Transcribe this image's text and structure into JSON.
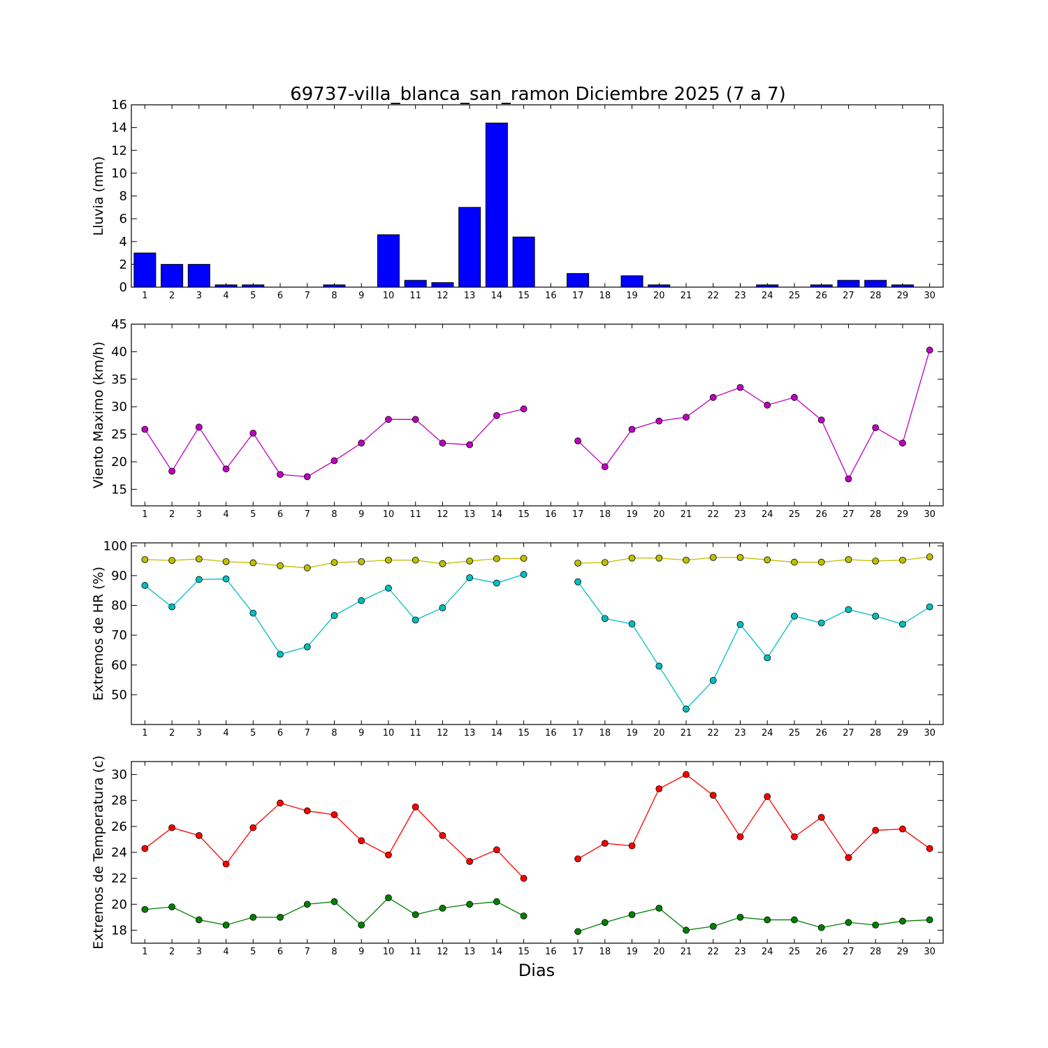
{
  "title": "69737-villa_blanca_san_ramon Diciembre 2025  (7 a 7)",
  "xlabel": "Dias",
  "days": [
    1,
    2,
    3,
    4,
    5,
    6,
    7,
    8,
    9,
    10,
    11,
    12,
    13,
    14,
    15,
    16,
    17,
    18,
    19,
    20,
    21,
    22,
    23,
    24,
    25,
    26,
    27,
    28,
    29,
    30
  ],
  "chart_data": [
    {
      "type": "bar",
      "ylabel": "Lluvia (mm)",
      "ylim": [
        0,
        16
      ],
      "yticks": [
        0,
        2,
        4,
        6,
        8,
        10,
        12,
        14,
        16
      ],
      "color": "#0000ff",
      "series": [
        {
          "values": [
            3.0,
            2.0,
            2.0,
            0.2,
            0.2,
            0,
            0,
            0.2,
            0,
            4.6,
            0.6,
            0.4,
            7.0,
            14.4,
            4.4,
            0,
            1.2,
            0,
            1.0,
            0.2,
            0,
            0,
            0,
            0.2,
            0,
            0.2,
            0.6,
            0.6,
            0.2,
            0
          ]
        }
      ]
    },
    {
      "type": "line",
      "ylabel": "Viento Maximo (km/h)",
      "ylim": [
        12,
        45
      ],
      "yticks": [
        15,
        20,
        25,
        30,
        35,
        40,
        45
      ],
      "series": [
        {
          "color": "#bf00bf",
          "values": [
            25.9,
            18.3,
            26.3,
            18.7,
            25.2,
            17.7,
            17.3,
            20.2,
            23.4,
            27.7,
            27.7,
            23.4,
            23.1,
            28.4,
            29.6,
            null,
            23.8,
            19.1,
            25.9,
            27.4,
            28.1,
            31.7,
            33.5,
            30.3,
            31.7,
            27.6,
            16.9,
            26.2,
            23.4,
            40.3
          ]
        }
      ]
    },
    {
      "type": "line",
      "ylabel": "Extremos de HR (%)",
      "ylim": [
        40,
        101
      ],
      "yticks": [
        50,
        60,
        70,
        80,
        90,
        100
      ],
      "series": [
        {
          "color": "#bfbf00",
          "values": [
            95.4,
            95.1,
            95.6,
            94.7,
            94.3,
            93.3,
            92.6,
            94.4,
            94.7,
            95.2,
            95.2,
            94.0,
            94.9,
            95.7,
            95.8,
            null,
            94.2,
            94.4,
            95.9,
            95.9,
            95.2,
            96.1,
            96.1,
            95.3,
            94.5,
            94.5,
            95.4,
            94.9,
            95.2,
            96.3
          ]
        },
        {
          "color": "#00bfbf",
          "values": [
            86.7,
            79.5,
            88.7,
            88.9,
            77.4,
            63.6,
            66.1,
            76.6,
            81.6,
            85.8,
            75.1,
            79.2,
            89.3,
            87.5,
            90.4,
            null,
            87.9,
            75.6,
            73.8,
            59.6,
            45.2,
            54.8,
            73.6,
            62.4,
            76.4,
            74.1,
            78.6,
            76.4,
            73.7,
            79.5
          ]
        }
      ]
    },
    {
      "type": "line",
      "ylabel": "Extremos de Temperatura (c)",
      "ylim": [
        17,
        31
      ],
      "yticks": [
        18,
        20,
        22,
        24,
        26,
        28,
        30
      ],
      "series": [
        {
          "color": "#ff0000",
          "values": [
            24.3,
            25.9,
            25.3,
            23.1,
            25.9,
            27.8,
            27.2,
            26.9,
            24.9,
            23.8,
            27.5,
            25.3,
            23.3,
            24.2,
            22.0,
            null,
            23.5,
            24.7,
            24.5,
            28.9,
            30.0,
            28.4,
            25.2,
            28.3,
            25.2,
            26.7,
            23.6,
            25.7,
            25.8,
            24.3
          ]
        },
        {
          "color": "#008000",
          "values": [
            19.6,
            19.8,
            18.8,
            18.4,
            19.0,
            19.0,
            20.0,
            20.2,
            18.4,
            20.5,
            19.2,
            19.7,
            20.0,
            20.2,
            19.1,
            null,
            17.9,
            18.6,
            19.2,
            19.7,
            18.0,
            18.3,
            19.0,
            18.8,
            18.8,
            18.2,
            18.6,
            18.4,
            18.7,
            18.8
          ]
        }
      ]
    }
  ]
}
